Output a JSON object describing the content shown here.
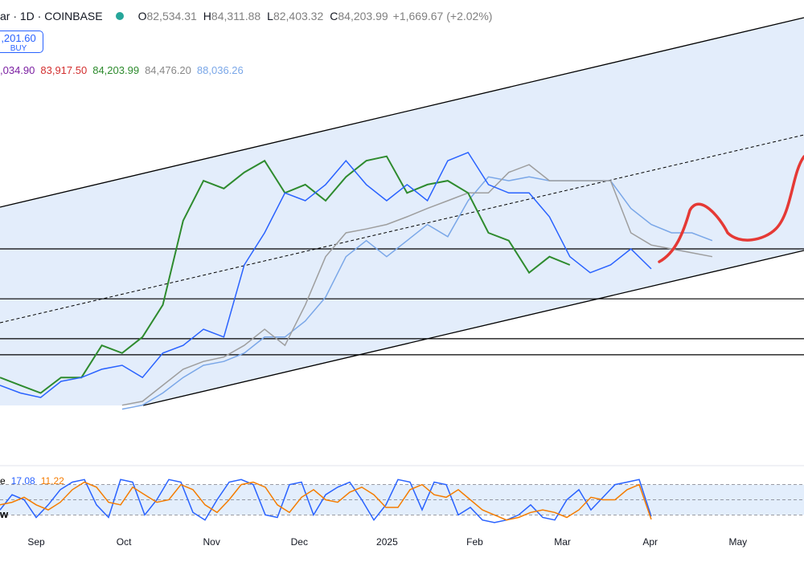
{
  "header": {
    "symbol": "ar · 1D · COINBASE",
    "ohlc": [
      {
        "key": "O",
        "value": "82,534.31"
      },
      {
        "key": "H",
        "value": "84,311.88"
      },
      {
        "key": "L",
        "value": "82,403.32"
      },
      {
        "key": "C",
        "value": "84,203.99"
      }
    ],
    "change": "+1,669.67 (+2.02%)",
    "buy_price": ",201.60",
    "buy_label": "BUY",
    "indicator_values": [
      {
        "text": ",034.90",
        "color": "#7b1fa2"
      },
      {
        "text": "83,917.50",
        "color": "#d32f2f"
      },
      {
        "text": "84,203.99",
        "color": "#2e8b2e"
      },
      {
        "text": "84,476.20",
        "color": "#888888"
      },
      {
        "text": "88,036.26",
        "color": "#7aa7e8"
      }
    ],
    "stoch_label": "e",
    "side_label": "w"
  },
  "chart_data": [
    {
      "type": "line",
      "x_labels": [
        "Sep",
        "Oct",
        "Nov",
        "Dec",
        "2025",
        "Feb",
        "Mar",
        "Apr",
        "May"
      ],
      "ylim": [
        48000,
        132000
      ],
      "hlines": [
        87100,
        78100,
        70900,
        68000
      ],
      "series": [
        {
          "color": "#2962ff",
          "values": [
            62500,
            61100,
            60300,
            63200,
            63900,
            65400,
            66100,
            63900,
            68300,
            69700,
            72600,
            71200,
            84200,
            90000,
            97200,
            95800,
            98700,
            103000,
            98700,
            95800,
            98700,
            95800,
            103000,
            104500,
            98700,
            97200,
            97200,
            92900,
            85700,
            82800,
            84200,
            87100,
            83500,
            null,
            null,
            null
          ]
        },
        {
          "color": "#2e8b2e",
          "values": [
            63900,
            62500,
            61100,
            63900,
            63900,
            69700,
            68300,
            71200,
            77000,
            92200,
            99400,
            98000,
            100900,
            103000,
            97200,
            98700,
            95800,
            100100,
            103000,
            103800,
            97200,
            98700,
            99400,
            97200,
            90000,
            88600,
            82800,
            85700,
            84200,
            null,
            null,
            null,
            null,
            null,
            null,
            null
          ]
        },
        {
          "color": "#7aa7e8",
          "values": [
            null,
            null,
            null,
            null,
            null,
            null,
            58200,
            58900,
            61100,
            63900,
            66100,
            66800,
            68300,
            71200,
            71200,
            74100,
            78400,
            85700,
            88600,
            85700,
            88600,
            91500,
            89300,
            95800,
            100100,
            99400,
            100100,
            99400,
            99400,
            99400,
            99400,
            94400,
            91500,
            90000,
            90000,
            88600
          ]
        },
        {
          "color": "#9e9e9e",
          "values": [
            null,
            null,
            null,
            null,
            null,
            null,
            58900,
            59600,
            62500,
            65400,
            66800,
            67600,
            69700,
            72600,
            69700,
            77000,
            85700,
            90000,
            90700,
            91500,
            92900,
            94400,
            95800,
            97200,
            97200,
            100900,
            102300,
            99400,
            99400,
            99400,
            99400,
            90000,
            87800,
            87100,
            86400,
            85700
          ]
        }
      ]
    },
    {
      "type": "line",
      "ylim": [
        0,
        100
      ],
      "levels": [
        20,
        50,
        80
      ],
      "series": [
        {
          "color": "#2962ff",
          "values": [
            30,
            60,
            50,
            15,
            40,
            70,
            85,
            90,
            40,
            15,
            90,
            85,
            20,
            50,
            90,
            85,
            25,
            10,
            50,
            85,
            90,
            80,
            20,
            15,
            80,
            85,
            20,
            60,
            75,
            85,
            50,
            10,
            40,
            90,
            85,
            30,
            85,
            80,
            20,
            35,
            10,
            5,
            10,
            20,
            40,
            15,
            10,
            50,
            70,
            30,
            55,
            80,
            85,
            90,
            17.08
          ]
        },
        {
          "color": "#f57c00",
          "values": [
            40,
            45,
            55,
            40,
            30,
            45,
            70,
            85,
            75,
            45,
            40,
            75,
            60,
            45,
            50,
            80,
            70,
            40,
            25,
            50,
            80,
            85,
            75,
            40,
            25,
            55,
            70,
            50,
            45,
            65,
            75,
            60,
            35,
            35,
            70,
            80,
            60,
            55,
            70,
            50,
            30,
            20,
            10,
            15,
            25,
            30,
            25,
            15,
            30,
            55,
            50,
            50,
            70,
            80,
            11.22
          ]
        }
      ]
    }
  ]
}
